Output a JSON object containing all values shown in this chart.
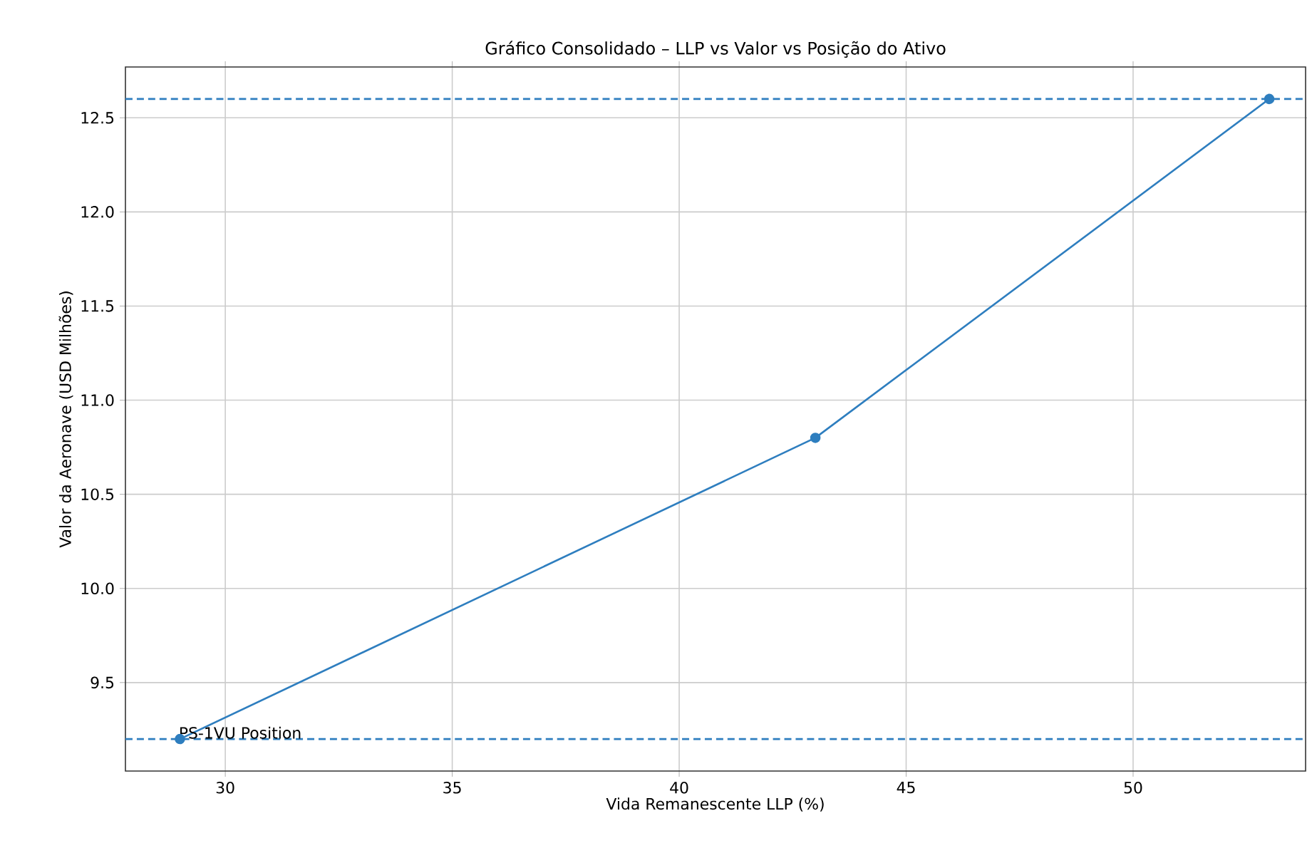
{
  "chart_data": {
    "type": "line",
    "title": "Gráfico Consolidado – LLP vs Valor vs Posição do Ativo",
    "xlabel": "Vida Remanescente LLP (%)",
    "ylabel": "Valor da Aeronave (USD Milhões)",
    "x": [
      29,
      43,
      53
    ],
    "series": [
      {
        "color": "#2e7ebf",
        "values": [
          9.2,
          10.8,
          12.6
        ]
      }
    ],
    "xlim": [
      27.8,
      53.8
    ],
    "xticks": [
      30,
      35,
      40,
      45,
      50
    ],
    "ylim": [
      9.03,
      12.77
    ],
    "yticks": [
      {
        "value": 9.5,
        "label": "9.5"
      },
      {
        "value": 10.0,
        "label": "10.0"
      },
      {
        "value": 10.5,
        "label": "10.5"
      },
      {
        "value": 11.0,
        "label": "11.0"
      },
      {
        "value": 11.5,
        "label": "11.5"
      },
      {
        "value": 12.0,
        "label": "12.0"
      },
      {
        "value": 12.5,
        "label": "12.5"
      }
    ],
    "ref_lines": [
      {
        "axis": "y",
        "value": 12.6,
        "color": "#2e7ebf",
        "line_style": "dashed"
      },
      {
        "axis": "y",
        "value": 9.2,
        "color": "#2e7ebf",
        "line_style": "dashed"
      }
    ],
    "annotations": [
      {
        "text": "PS-1VU Position",
        "x": 29,
        "y": 9.2
      }
    ],
    "grid": true,
    "marker": "circle",
    "line_style": "solid"
  }
}
